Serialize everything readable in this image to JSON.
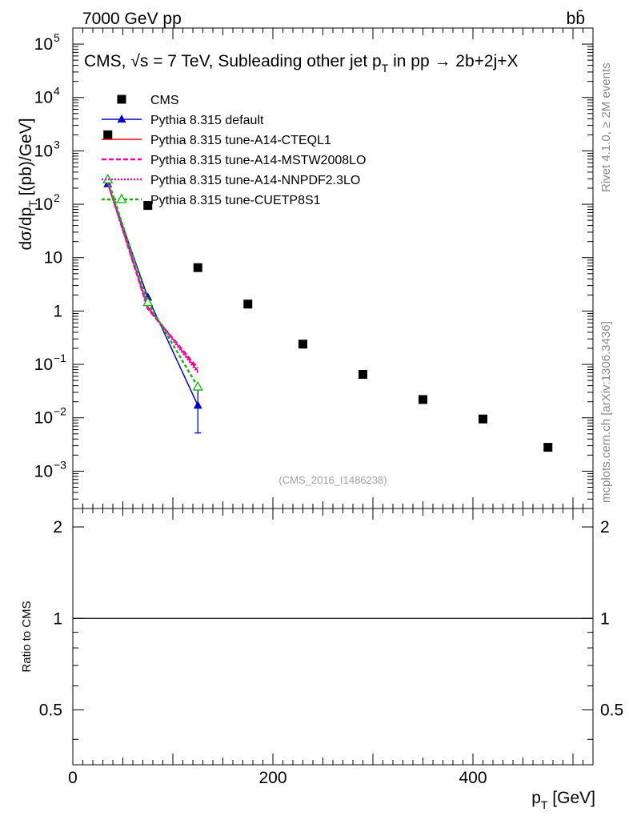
{
  "header": {
    "energy_label": "7000 GeV pp",
    "process_label": "bb̄"
  },
  "side_labels": {
    "rivet": "Rivet 4.1.0, ≥ 2M events",
    "mcplots": "mcplots.cern.ch [arXiv:1306.3436]"
  },
  "chart_data": {
    "type": "scatter",
    "title": "CMS, √s = 7 TeV, Subleading other jet pT in pp → 2b+2j+X",
    "title_parts": [
      "CMS, √s = 7 TeV, Subleading other jet p",
      "T",
      " in pp → 2b+2j+X"
    ],
    "watermark": "(CMS_2016_I1486238)",
    "ylabel_main": "dσ/dpT [(pb)/GeV]",
    "ylabel_parts": [
      "dσ/dp",
      "T",
      " [(pb)/GeV]"
    ],
    "ylabel_ratio": "Ratio to CMS",
    "xlabel": "pT [GeV]",
    "xlabel_parts": [
      "p",
      "T",
      " [GeV]"
    ],
    "xlim": [
      0,
      520
    ],
    "ylim_main": [
      0.0002,
      200000
    ],
    "ylim_ratio": [
      0.33,
      2.3
    ],
    "yscale_main": "log",
    "yscale_ratio": "log",
    "x_ticks": [
      0,
      200,
      400
    ],
    "y_tick_labels_main": [
      {
        "v": 100000,
        "base": "10",
        "exp": "5"
      },
      {
        "v": 10000,
        "base": "10",
        "exp": "4"
      },
      {
        "v": 1000,
        "base": "10",
        "exp": "3"
      },
      {
        "v": 100,
        "base": "10",
        "exp": "2"
      },
      {
        "v": 10,
        "base": "10",
        "exp": ""
      },
      {
        "v": 1,
        "base": "1",
        "exp": ""
      },
      {
        "v": 0.1,
        "base": "10",
        "exp": "−1"
      },
      {
        "v": 0.01,
        "base": "10",
        "exp": "−2"
      },
      {
        "v": 0.001,
        "base": "10",
        "exp": "−3"
      }
    ],
    "y_ticks_ratio": [
      {
        "v": 2,
        "label": "2"
      },
      {
        "v": 1,
        "label": "1"
      },
      {
        "v": 0.5,
        "label": "0.5"
      }
    ],
    "legend_position": "top-left",
    "series": [
      {
        "name": "CMS",
        "kind": "data",
        "color": "#000000",
        "marker": "square",
        "x": [
          35,
          75,
          125,
          175,
          230,
          290,
          350,
          410,
          475
        ],
        "y": [
          2000,
          95,
          6.5,
          1.35,
          0.24,
          0.065,
          0.022,
          0.0095,
          0.0028
        ]
      },
      {
        "name": "Pythia 8.315 default",
        "kind": "mc",
        "color": "#0000cc",
        "dash": "",
        "marker": "triangle-filled",
        "x": [
          35,
          75,
          125
        ],
        "y": [
          240,
          1.8,
          0.017
        ],
        "err_low": [
          0,
          0,
          0.0052
        ],
        "err_high": [
          0,
          0,
          0.034
        ]
      },
      {
        "name": "Pythia 8.315 tune-A14-CTEQL1",
        "kind": "mc",
        "color": "#ff0000",
        "dash": "",
        "marker": "none",
        "x": [
          35,
          75,
          125
        ],
        "y": [
          250,
          1.2,
          0.075
        ]
      },
      {
        "name": "Pythia 8.315 tune-A14-MSTW2008LO",
        "kind": "mc",
        "color": "#ff0099",
        "dash": "6,3",
        "marker": "none",
        "x": [
          35,
          75,
          125
        ],
        "y": [
          255,
          1.1,
          0.085
        ]
      },
      {
        "name": "Pythia 8.315 tune-A14-NNPDF2.3LO",
        "kind": "mc",
        "color": "#ee00ee",
        "dash": "2,2",
        "marker": "none",
        "x": [
          35,
          75,
          125
        ],
        "y": [
          248,
          1.15,
          0.07
        ]
      },
      {
        "name": "Pythia 8.315 tune-CUETP8S1",
        "kind": "mc",
        "color": "#00bb00",
        "dash": "4,3",
        "marker": "triangle-open",
        "x": [
          35,
          75,
          125
        ],
        "y": [
          290,
          1.45,
          0.038
        ]
      }
    ]
  }
}
